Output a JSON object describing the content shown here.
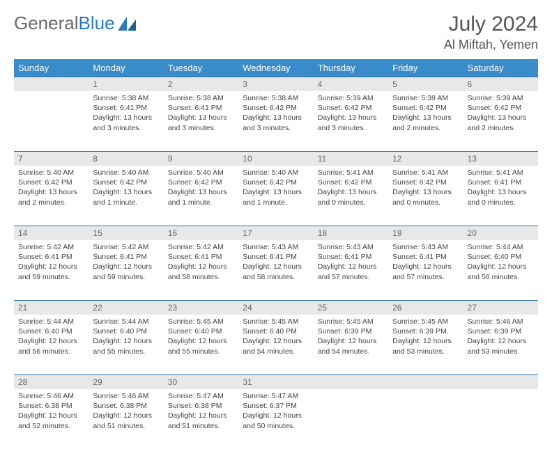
{
  "brand": {
    "part1": "General",
    "part2": "Blue"
  },
  "title": "July 2024",
  "location": "Al Miftah, Yemen",
  "colors": {
    "header_bg": "#3a8bc9",
    "header_text": "#ffffff",
    "daynum_bg": "#e8e8e8",
    "daynum_border": "#2a6fa8",
    "body_text": "#444444",
    "logo_gray": "#6a6a6a",
    "logo_blue": "#2a7bbd"
  },
  "weekdays": [
    "Sunday",
    "Monday",
    "Tuesday",
    "Wednesday",
    "Thursday",
    "Friday",
    "Saturday"
  ],
  "month": {
    "start_weekday": 1,
    "days_in_month": 31
  },
  "days": {
    "1": {
      "sunrise": "5:38 AM",
      "sunset": "6:41 PM",
      "daylight": "13 hours and 3 minutes."
    },
    "2": {
      "sunrise": "5:38 AM",
      "sunset": "6:41 PM",
      "daylight": "13 hours and 3 minutes."
    },
    "3": {
      "sunrise": "5:38 AM",
      "sunset": "6:42 PM",
      "daylight": "13 hours and 3 minutes."
    },
    "4": {
      "sunrise": "5:39 AM",
      "sunset": "6:42 PM",
      "daylight": "13 hours and 3 minutes."
    },
    "5": {
      "sunrise": "5:39 AM",
      "sunset": "6:42 PM",
      "daylight": "13 hours and 2 minutes."
    },
    "6": {
      "sunrise": "5:39 AM",
      "sunset": "6:42 PM",
      "daylight": "13 hours and 2 minutes."
    },
    "7": {
      "sunrise": "5:40 AM",
      "sunset": "6:42 PM",
      "daylight": "13 hours and 2 minutes."
    },
    "8": {
      "sunrise": "5:40 AM",
      "sunset": "6:42 PM",
      "daylight": "13 hours and 1 minute."
    },
    "9": {
      "sunrise": "5:40 AM",
      "sunset": "6:42 PM",
      "daylight": "13 hours and 1 minute."
    },
    "10": {
      "sunrise": "5:40 AM",
      "sunset": "6:42 PM",
      "daylight": "13 hours and 1 minute."
    },
    "11": {
      "sunrise": "5:41 AM",
      "sunset": "6:42 PM",
      "daylight": "13 hours and 0 minutes."
    },
    "12": {
      "sunrise": "5:41 AM",
      "sunset": "6:42 PM",
      "daylight": "13 hours and 0 minutes."
    },
    "13": {
      "sunrise": "5:41 AM",
      "sunset": "6:41 PM",
      "daylight": "13 hours and 0 minutes."
    },
    "14": {
      "sunrise": "5:42 AM",
      "sunset": "6:41 PM",
      "daylight": "12 hours and 59 minutes."
    },
    "15": {
      "sunrise": "5:42 AM",
      "sunset": "6:41 PM",
      "daylight": "12 hours and 59 minutes."
    },
    "16": {
      "sunrise": "5:42 AM",
      "sunset": "6:41 PM",
      "daylight": "12 hours and 58 minutes."
    },
    "17": {
      "sunrise": "5:43 AM",
      "sunset": "6:41 PM",
      "daylight": "12 hours and 58 minutes."
    },
    "18": {
      "sunrise": "5:43 AM",
      "sunset": "6:41 PM",
      "daylight": "12 hours and 57 minutes."
    },
    "19": {
      "sunrise": "5:43 AM",
      "sunset": "6:41 PM",
      "daylight": "12 hours and 57 minutes."
    },
    "20": {
      "sunrise": "5:44 AM",
      "sunset": "6:40 PM",
      "daylight": "12 hours and 56 minutes."
    },
    "21": {
      "sunrise": "5:44 AM",
      "sunset": "6:40 PM",
      "daylight": "12 hours and 56 minutes."
    },
    "22": {
      "sunrise": "5:44 AM",
      "sunset": "6:40 PM",
      "daylight": "12 hours and 55 minutes."
    },
    "23": {
      "sunrise": "5:45 AM",
      "sunset": "6:40 PM",
      "daylight": "12 hours and 55 minutes."
    },
    "24": {
      "sunrise": "5:45 AM",
      "sunset": "6:40 PM",
      "daylight": "12 hours and 54 minutes."
    },
    "25": {
      "sunrise": "5:45 AM",
      "sunset": "6:39 PM",
      "daylight": "12 hours and 54 minutes."
    },
    "26": {
      "sunrise": "5:45 AM",
      "sunset": "6:39 PM",
      "daylight": "12 hours and 53 minutes."
    },
    "27": {
      "sunrise": "5:46 AM",
      "sunset": "6:39 PM",
      "daylight": "12 hours and 53 minutes."
    },
    "28": {
      "sunrise": "5:46 AM",
      "sunset": "6:38 PM",
      "daylight": "12 hours and 52 minutes."
    },
    "29": {
      "sunrise": "5:46 AM",
      "sunset": "6:38 PM",
      "daylight": "12 hours and 51 minutes."
    },
    "30": {
      "sunrise": "5:47 AM",
      "sunset": "6:38 PM",
      "daylight": "12 hours and 51 minutes."
    },
    "31": {
      "sunrise": "5:47 AM",
      "sunset": "6:37 PM",
      "daylight": "12 hours and 50 minutes."
    }
  },
  "labels": {
    "sunrise": "Sunrise:",
    "sunset": "Sunset:",
    "daylight": "Daylight:"
  }
}
